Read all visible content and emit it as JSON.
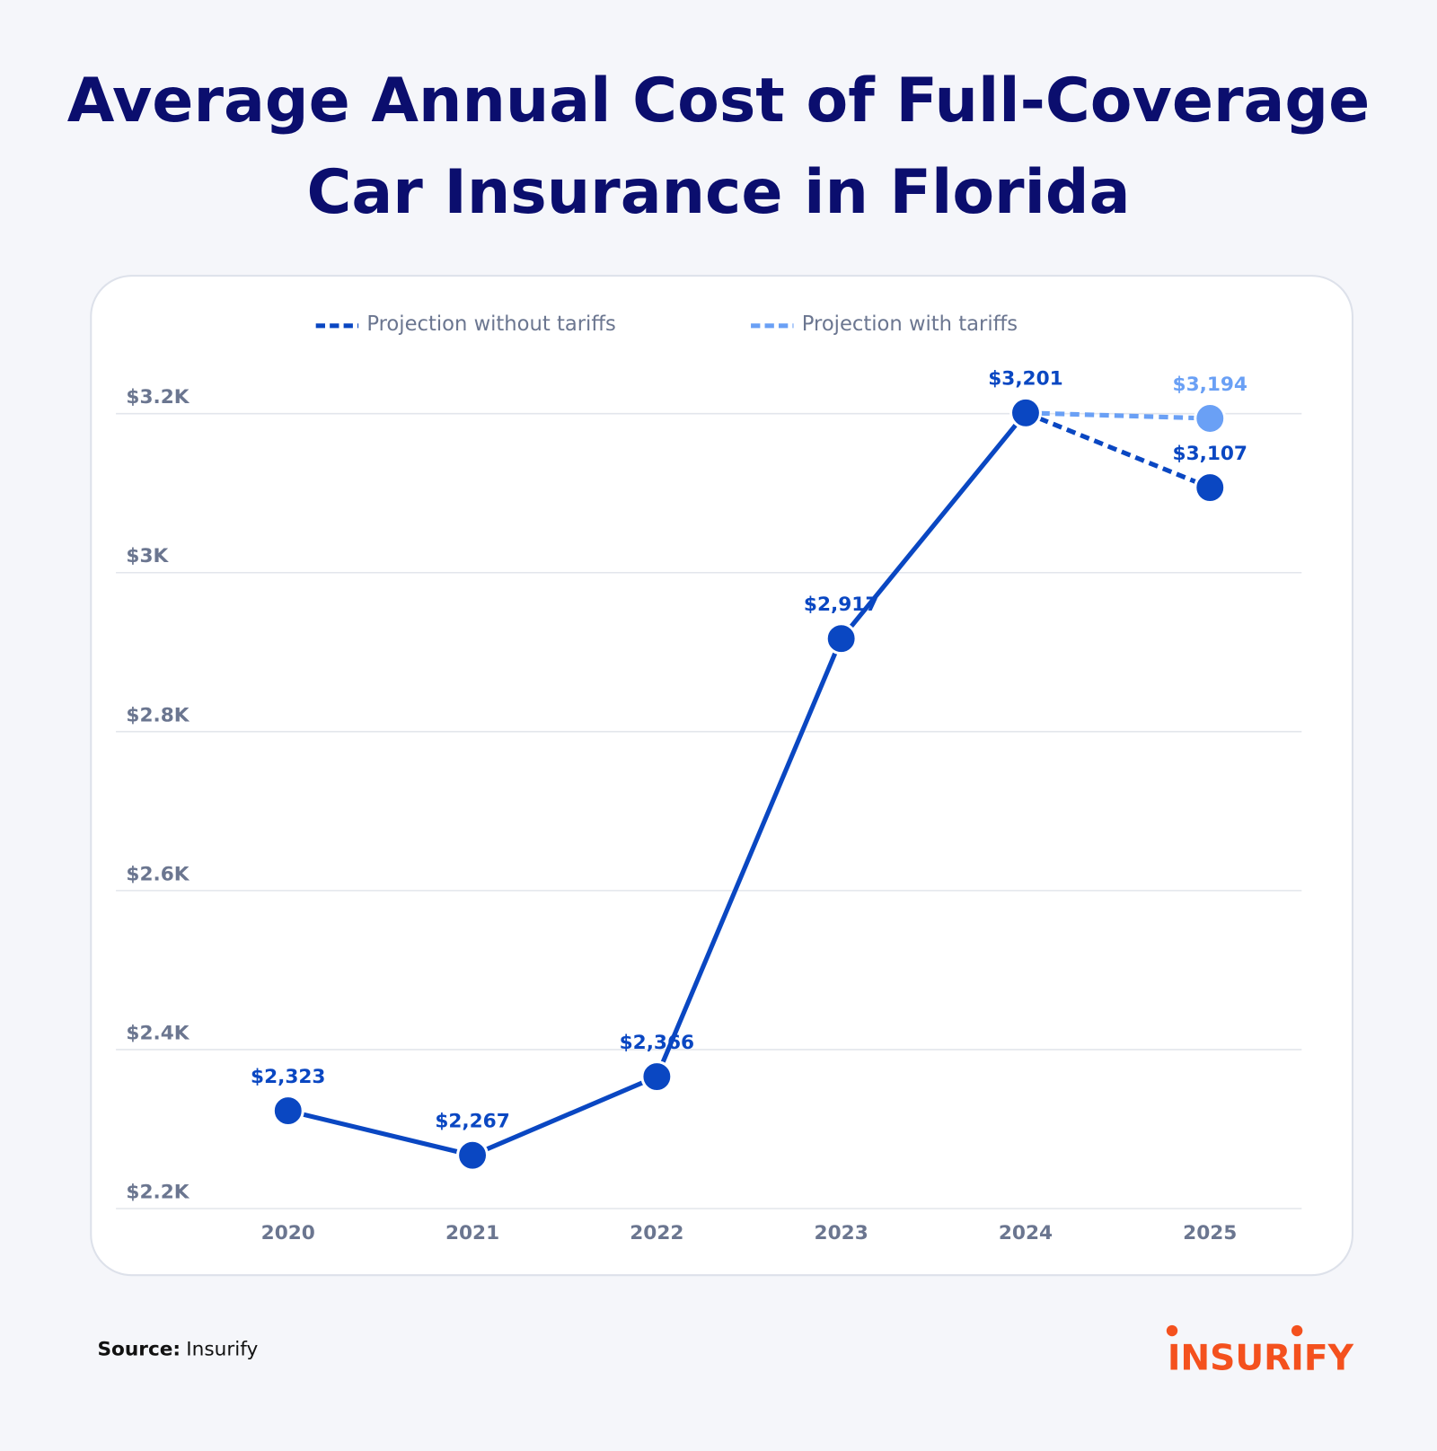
{
  "chart_data": {
    "type": "line",
    "title": [
      "Average Annual Cost of Full-Coverage",
      "Car Insurance in Florida"
    ],
    "categories": [
      "2020",
      "2021",
      "2022",
      "2023",
      "2024",
      "2025"
    ],
    "series": [
      {
        "color": "#0a47c2",
        "line_style": "solid",
        "values": [
          2323,
          2267,
          2366,
          2917,
          3201,
          null
        ],
        "value_labels": [
          "$2,323",
          "$2,267",
          "$2,366",
          "$2,917",
          "$3,201",
          null
        ]
      },
      {
        "name": "Projection without tariffs",
        "color": "#0a47c2",
        "line_style": "dashed",
        "values": [
          null,
          null,
          null,
          null,
          3201,
          3107
        ],
        "value_labels": [
          null,
          null,
          null,
          null,
          null,
          "$3,107"
        ]
      },
      {
        "name": "Projection with tariffs",
        "color": "#6aa0f5",
        "line_style": "dashed",
        "values": [
          null,
          null,
          null,
          null,
          3201,
          3194
        ],
        "value_labels": [
          null,
          null,
          null,
          null,
          null,
          "$3,194"
        ]
      }
    ],
    "ylim": [
      2200,
      3200
    ],
    "yticks": [
      {
        "value": 2200,
        "label": "$2.2K"
      },
      {
        "value": 2400,
        "label": "$2.4K"
      },
      {
        "value": 2600,
        "label": "$2.6K"
      },
      {
        "value": 2800,
        "label": "$2.8K"
      },
      {
        "value": 3000,
        "label": "$3K"
      },
      {
        "value": 3200,
        "label": "$3.2K"
      }
    ],
    "grid": true
  },
  "source": {
    "label": "Source:",
    "text": "Insurify"
  },
  "logo": "INSURIFY"
}
